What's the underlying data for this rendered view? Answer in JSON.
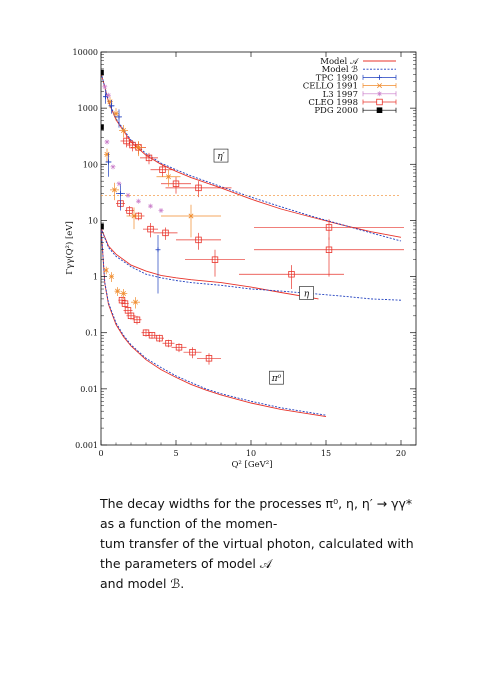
{
  "chart_data": {
    "type": "scatter",
    "title": "",
    "xlabel": "Q² [GeV²]",
    "ylabel": "Γγγ(Q²) [eV]",
    "xlim": [
      0,
      21
    ],
    "ylim": [
      0.001,
      10000
    ],
    "yscale": "log",
    "x_ticks": [
      0,
      5,
      10,
      15,
      20
    ],
    "y_ticks": [
      {
        "value": 0.001,
        "label": "0.001"
      },
      {
        "value": 0.01,
        "label": "0.01"
      },
      {
        "value": 0.1,
        "label": "0.1"
      },
      {
        "value": 1,
        "label": "1"
      },
      {
        "value": 10,
        "label": "10"
      },
      {
        "value": 100,
        "label": "100"
      },
      {
        "value": 1000,
        "label": "1000"
      },
      {
        "value": 10000,
        "label": "10000"
      }
    ],
    "legend_position": "top-right",
    "legend": [
      {
        "label": "Model 𝒜",
        "color": "#e8332a",
        "style": "solid"
      },
      {
        "label": "Model ℬ",
        "color": "#1f3fbf",
        "style": "dotted"
      },
      {
        "label": "TPC 1990",
        "color": "#1f3fbf",
        "marker": "plus"
      },
      {
        "label": "CELLO 1991",
        "color": "#f08a2a",
        "marker": "cross"
      },
      {
        "label": "L3 1997",
        "color": "#c87ac8",
        "marker": "star"
      },
      {
        "label": "CLEO 1998",
        "color": "#e8332a",
        "marker": "square"
      },
      {
        "label": "PDG 2000",
        "color": "#000000",
        "marker": "filled-square"
      }
    ],
    "annotations": [
      "η′",
      "η",
      "π⁰"
    ],
    "curves": [
      {
        "name": "Model 𝒜",
        "process": "eta_prime",
        "x": [
          0,
          0.5,
          1,
          2,
          3,
          4,
          5,
          6,
          8,
          10,
          12,
          14,
          16,
          18,
          20
        ],
        "y": [
          4300,
          1300,
          620,
          250,
          145,
          100,
          75,
          58,
          38,
          24,
          16,
          11.5,
          8.4,
          6.3,
          5.0
        ]
      },
      {
        "name": "Model ℬ",
        "process": "eta_prime",
        "x": [
          0,
          0.5,
          1,
          2,
          3,
          4,
          5,
          6,
          8,
          10,
          12,
          14,
          16,
          18,
          20
        ],
        "y": [
          4300,
          1350,
          650,
          270,
          155,
          105,
          80,
          62,
          40,
          26,
          17.5,
          12,
          8.5,
          6.0,
          4.3
        ]
      },
      {
        "name": "Model 𝒜",
        "process": "eta",
        "x": [
          0,
          0.5,
          1,
          2,
          3,
          4,
          5,
          6,
          8,
          10,
          12,
          14.5
        ],
        "y": [
          7.3,
          3.5,
          2.5,
          1.6,
          1.25,
          1.05,
          0.95,
          0.88,
          0.78,
          0.65,
          0.52,
          0.4
        ]
      },
      {
        "name": "Model ℬ",
        "process": "eta",
        "x": [
          0,
          0.5,
          1,
          2,
          3,
          4,
          5,
          6,
          8,
          10,
          12,
          14,
          16,
          18,
          20
        ],
        "y": [
          7.3,
          3.3,
          2.3,
          1.5,
          1.1,
          0.95,
          0.85,
          0.78,
          0.7,
          0.6,
          0.55,
          0.5,
          0.45,
          0.4,
          0.38
        ]
      },
      {
        "name": "Model 𝒜",
        "process": "pi0",
        "x": [
          0,
          0.25,
          0.5,
          1,
          1.5,
          2,
          3,
          4,
          5,
          6,
          7,
          8,
          10,
          12,
          15
        ],
        "y": [
          7.7,
          0.75,
          0.32,
          0.14,
          0.085,
          0.058,
          0.033,
          0.022,
          0.016,
          0.012,
          0.0095,
          0.0078,
          0.0056,
          0.0043,
          0.0032
        ]
      },
      {
        "name": "Model ℬ",
        "process": "pi0",
        "x": [
          0,
          0.25,
          0.5,
          1,
          1.5,
          2,
          3,
          4,
          5,
          6,
          7,
          8,
          10,
          12,
          15
        ],
        "y": [
          7.7,
          0.78,
          0.34,
          0.15,
          0.09,
          0.061,
          0.035,
          0.024,
          0.017,
          0.013,
          0.01,
          0.0082,
          0.006,
          0.0046,
          0.0034
        ]
      }
    ],
    "series": [
      {
        "name": "PDG 2000",
        "points": [
          {
            "x": 0,
            "y": 4300
          },
          {
            "x": 0,
            "y": 460
          },
          {
            "x": 0,
            "y": 7.8
          }
        ]
      },
      {
        "name": "CLEO 1998",
        "points": [
          {
            "x": 1.7,
            "y": 260,
            "xerr": 0.4,
            "yerr": 60
          },
          {
            "x": 2.1,
            "y": 220,
            "xerr": 0.4,
            "yerr": 50
          },
          {
            "x": 2.5,
            "y": 200,
            "xerr": 0.5,
            "yerr": 50
          },
          {
            "x": 3.2,
            "y": 130,
            "xerr": 0.6,
            "yerr": 30
          },
          {
            "x": 4.1,
            "y": 80,
            "xerr": 0.8,
            "yerr": 20
          },
          {
            "x": 5.0,
            "y": 45,
            "xerr": 1.0,
            "yerr": 15
          },
          {
            "x": 6.5,
            "y": 38,
            "xerr": 2.2,
            "yerr": 12
          },
          {
            "x": 15.2,
            "y": 7.5,
            "xerr": 5.0,
            "yerr": 3
          },
          {
            "x": 1.3,
            "y": 20,
            "xerr": 0.3,
            "yerr": 3
          },
          {
            "x": 1.9,
            "y": 15,
            "xerr": 0.3,
            "yerr": 3
          },
          {
            "x": 2.5,
            "y": 12,
            "xerr": 0.4,
            "yerr": 2
          },
          {
            "x": 3.3,
            "y": 7,
            "xerr": 0.5,
            "yerr": 2
          },
          {
            "x": 4.3,
            "y": 6,
            "xerr": 0.8,
            "yerr": 1.5
          },
          {
            "x": 6.5,
            "y": 4.5,
            "xerr": 1.5,
            "yerr": 1.5
          },
          {
            "x": 7.6,
            "y": 2.0,
            "xerr": 2.0,
            "yerr": 1.0
          },
          {
            "x": 12.7,
            "y": 1.1,
            "xerr": 3.5,
            "yerr": 0.5
          },
          {
            "x": 15.2,
            "y": 3.0,
            "xerr": 5.0,
            "yerr": 2
          },
          {
            "x": 1.4,
            "y": 0.38,
            "xerr": 0.25,
            "yerr": 0.06
          },
          {
            "x": 1.6,
            "y": 0.33,
            "xerr": 0.25,
            "yerr": 0.05
          },
          {
            "x": 1.8,
            "y": 0.25,
            "xerr": 0.3,
            "yerr": 0.04
          },
          {
            "x": 2.0,
            "y": 0.2,
            "xerr": 0.3,
            "yerr": 0.03
          },
          {
            "x": 2.4,
            "y": 0.17,
            "xerr": 0.3,
            "yerr": 0.03
          },
          {
            "x": 3.0,
            "y": 0.1,
            "xerr": 0.3,
            "yerr": 0.015
          },
          {
            "x": 3.4,
            "y": 0.09,
            "xerr": 0.3,
            "yerr": 0.012
          },
          {
            "x": 3.9,
            "y": 0.08,
            "xerr": 0.3,
            "yerr": 0.012
          },
          {
            "x": 4.5,
            "y": 0.065,
            "xerr": 0.4,
            "yerr": 0.01
          },
          {
            "x": 5.2,
            "y": 0.055,
            "xerr": 0.5,
            "yerr": 0.01
          },
          {
            "x": 6.1,
            "y": 0.045,
            "xerr": 0.6,
            "yerr": 0.01
          },
          {
            "x": 7.2,
            "y": 0.035,
            "xerr": 0.8,
            "yerr": 0.008
          }
        ]
      },
      {
        "name": "CELLO 1991",
        "points": [
          {
            "x": 0.6,
            "y": 1300,
            "xerr": 0.2,
            "yerr": 300
          },
          {
            "x": 1.0,
            "y": 800,
            "xerr": 0.2,
            "yerr": 200
          },
          {
            "x": 1.5,
            "y": 400,
            "xerr": 0.3,
            "yerr": 100
          },
          {
            "x": 2.5,
            "y": 200,
            "xerr": 0.4,
            "yerr": 60
          },
          {
            "x": 4.5,
            "y": 60,
            "xerr": 0.8,
            "yerr": 20
          },
          {
            "x": 0.4,
            "y": 150,
            "xerr": 0.2,
            "yerr": 40
          },
          {
            "x": 0.9,
            "y": 35,
            "xerr": 0.3,
            "yerr": 12
          },
          {
            "x": 2.2,
            "y": 12,
            "xerr": 0.5,
            "yerr": 5
          },
          {
            "x": 6.0,
            "y": 12,
            "xerr": 2.0,
            "yerr": 7
          },
          {
            "x": 0.35,
            "y": 1.3,
            "xerr": 0.1,
            "yerr": 0.2
          },
          {
            "x": 0.7,
            "y": 1.0,
            "xerr": 0.15,
            "yerr": 0.2
          },
          {
            "x": 1.1,
            "y": 0.55,
            "xerr": 0.2,
            "yerr": 0.1
          },
          {
            "x": 1.5,
            "y": 0.5,
            "xerr": 0.25,
            "yerr": 0.1
          },
          {
            "x": 2.3,
            "y": 0.35,
            "xerr": 0.3,
            "yerr": 0.08
          }
        ]
      },
      {
        "name": "TPC 1990",
        "points": [
          {
            "x": 0.3,
            "y": 1600,
            "xerr": 0.1,
            "yerr": 400
          },
          {
            "x": 0.7,
            "y": 1100,
            "xerr": 0.2,
            "yerr": 300
          },
          {
            "x": 1.2,
            "y": 700,
            "xerr": 0.2,
            "yerr": 250
          },
          {
            "x": 0.5,
            "y": 110,
            "xerr": 0.2,
            "yerr": 50
          },
          {
            "x": 1.3,
            "y": 30,
            "xerr": 0.3,
            "yerr": 15
          },
          {
            "x": 3.8,
            "y": 3,
            "xerr": 0.1,
            "yerr": 2.5
          }
        ]
      },
      {
        "name": "L3 1997",
        "points": [
          {
            "x": 0.25,
            "y": 2400
          },
          {
            "x": 0.5,
            "y": 1700
          },
          {
            "x": 0.4,
            "y": 250
          },
          {
            "x": 0.8,
            "y": 90
          },
          {
            "x": 1.2,
            "y": 45
          },
          {
            "x": 1.8,
            "y": 28
          },
          {
            "x": 2.5,
            "y": 22
          },
          {
            "x": 3.3,
            "y": 18
          },
          {
            "x": 4.0,
            "y": 15
          }
        ]
      },
      {
        "name": "CELLO 1991 (dotted)",
        "points": [
          {
            "x": 6.0,
            "y": 28,
            "xerr": 14.0
          }
        ]
      }
    ]
  },
  "caption": {
    "lines": [
      "The decay widths for the processes π⁰, η, η′ → γγ* as a function of the momen-",
      "tum transfer of the virtual photon, calculated with the parameters of model 𝒜",
      "and model ℬ."
    ]
  }
}
